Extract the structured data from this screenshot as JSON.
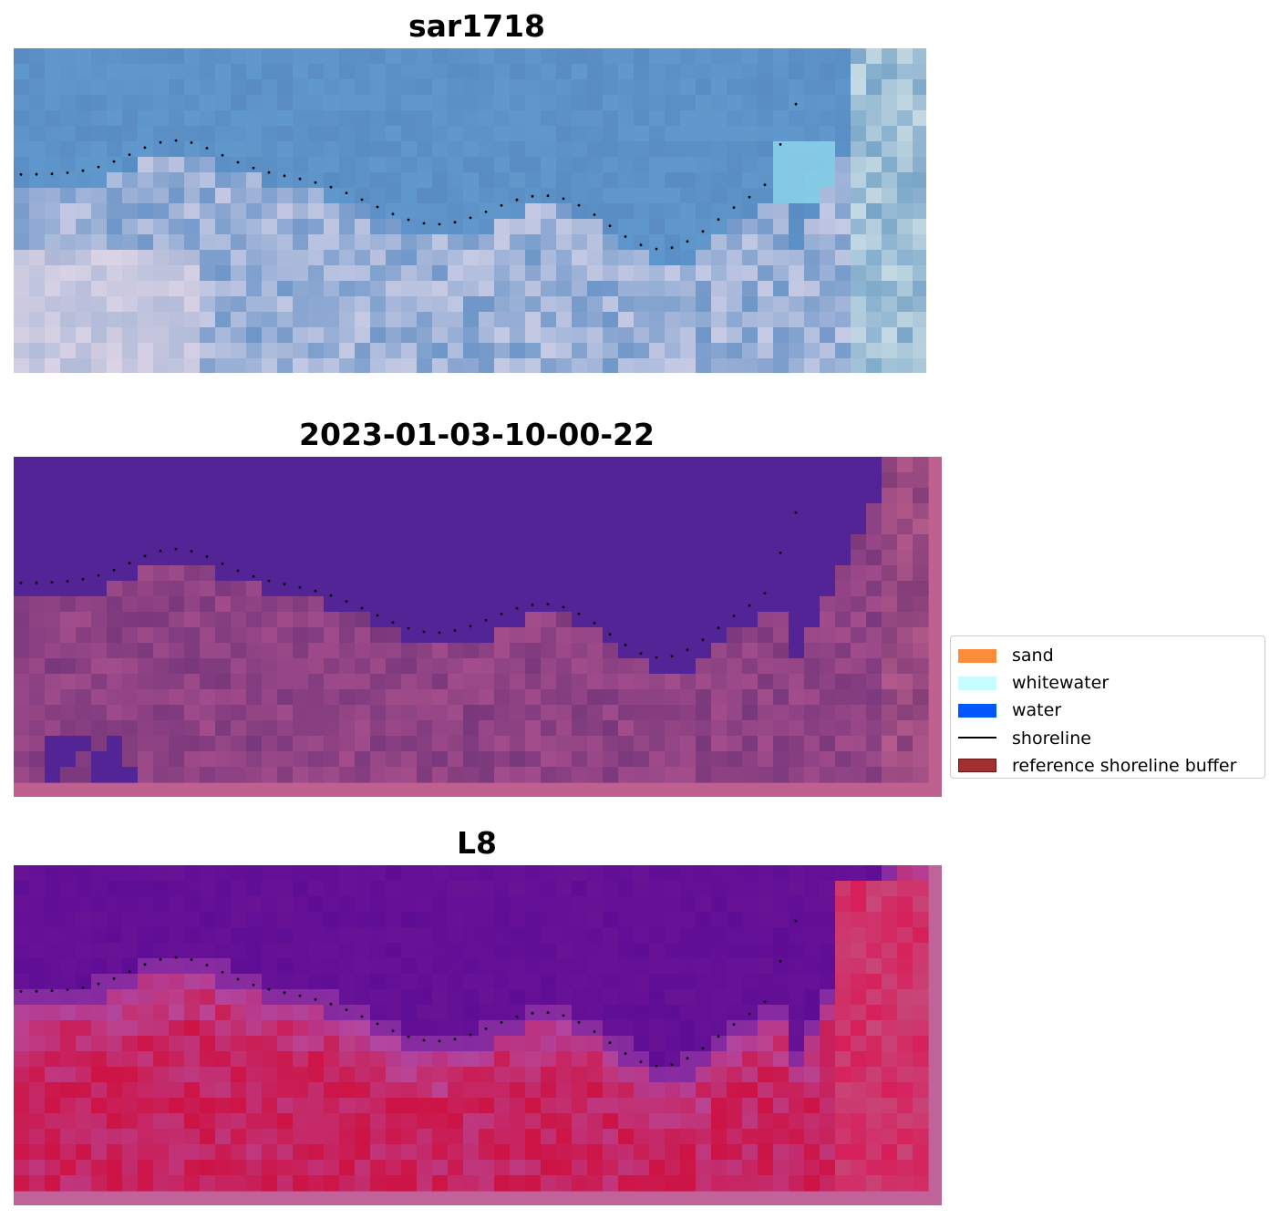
{
  "panels": [
    {
      "title": "sar1718",
      "view": "rgb-composite"
    },
    {
      "title": "2023-01-03-10-00-22",
      "view": "classified"
    },
    {
      "title": "L8",
      "view": "index-map"
    }
  ],
  "legend": {
    "items": [
      {
        "label": "sand",
        "color": "#ff8c3a",
        "kind": "patch"
      },
      {
        "label": "whitewater",
        "color": "#c7fdff",
        "kind": "patch"
      },
      {
        "label": "water",
        "color": "#0057ff",
        "kind": "patch"
      },
      {
        "label": "shoreline",
        "color": "#000000",
        "kind": "line"
      },
      {
        "label": "reference shoreline buffer",
        "color": "#a3302e",
        "edge": "#6b1212",
        "kind": "patch"
      }
    ]
  }
}
